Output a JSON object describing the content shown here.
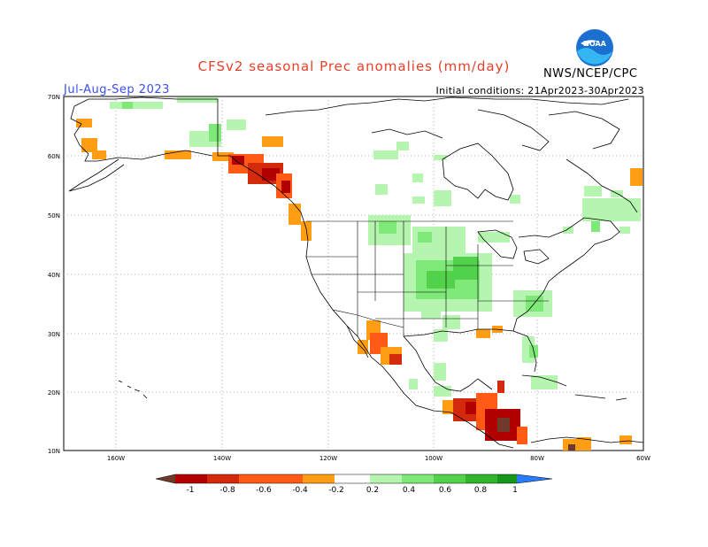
{
  "title": "CFSv2 seasonal Prec anomalies (mm/day)",
  "season": "Jul-Aug-Sep 2023",
  "initial_conditions": "Initial conditions: 21Apr2023-30Apr2023",
  "agency": "NWS/NCEP/CPC",
  "logo_icon": "noaa-logo-icon",
  "map": {
    "lat_labels": [
      "70N",
      "60N",
      "50N",
      "40N",
      "30N",
      "20N",
      "10N"
    ],
    "lon_labels": [
      "160W",
      "140W",
      "120W",
      "100W",
      "80W",
      "60W"
    ]
  },
  "colorbar": {
    "labels": [
      "-1",
      "-0.8",
      "-0.6",
      "-0.4",
      "-0.2",
      "0.2",
      "0.4",
      "0.6",
      "0.8",
      "1"
    ],
    "colors": [
      "#6e3b2a",
      "#b20000",
      "#d32a0c",
      "#ff5a16",
      "#ff9d14",
      "#ffffff",
      "#b6f5b0",
      "#7ee879",
      "#52d24b",
      "#31b52b",
      "#16961a",
      "#2a7cff"
    ]
  }
}
